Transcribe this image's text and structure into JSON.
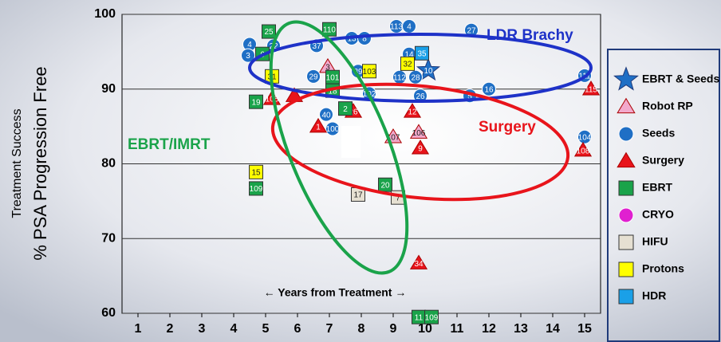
{
  "chart_data": {
    "type": "scatter",
    "y_label_top": "Treatment Success",
    "y_label": "% PSA Progression Free",
    "x_label": "← Years from Treatment →",
    "annotations": {
      "ldr": "LDR Brachy",
      "surgery": "Surgery",
      "ebrt": "EBRT/IMRT"
    },
    "xlim": [
      0.5,
      15.5
    ],
    "xticks": [
      1,
      2,
      3,
      4,
      5,
      6,
      7,
      8,
      9,
      10,
      11,
      12,
      13,
      14,
      15
    ],
    "ylim": [
      60,
      100
    ],
    "yticks": [
      60,
      70,
      80,
      90,
      100
    ],
    "grid": true,
    "series": [
      {
        "name": "EBRT & Seeds",
        "color": "#1f6fc5",
        "marker": "star",
        "x": [
          10.1
        ],
        "values": [
          92.5
        ],
        "labels": [
          "10"
        ]
      },
      {
        "name": "Robot RP",
        "color": "#f2a9cc",
        "marker": "triangle",
        "x": [
          6.95,
          9.0,
          9.8
        ],
        "values": [
          93,
          83.6,
          84.2
        ],
        "labels": [
          "3",
          "107",
          "106"
        ]
      },
      {
        "name": "Seeds",
        "color": "#1f6fc5",
        "marker": "circle",
        "x": [
          4.5,
          4.45,
          5.25,
          6.6,
          7.7,
          8.1,
          9.1,
          9.5,
          11.45,
          9.5,
          6.5,
          7.9,
          8.25,
          9.2,
          9.7,
          9.85,
          11.4,
          12,
          6.9,
          7.1,
          15,
          15
        ],
        "values": [
          96,
          94.5,
          95.8,
          95.8,
          96.8,
          96.8,
          98.4,
          98.4,
          97.9,
          94.7,
          91.7,
          92.4,
          89.4,
          91.6,
          91.6,
          89.1,
          89.1,
          90,
          86.6,
          84.7,
          91.8,
          83.6
        ],
        "labels": [
          "4",
          "3",
          "22",
          "37",
          "13",
          "8",
          "113",
          "4",
          "27",
          "14",
          "29",
          "39",
          "102",
          "112",
          "28",
          "26",
          "5",
          "16",
          "40",
          "100",
          "111",
          "104"
        ]
      },
      {
        "name": "Surgery",
        "color": "#e8141b",
        "marker": "triangle",
        "x": [
          5.2,
          5.9,
          6.65,
          7.75,
          9.6,
          9.85,
          9.8,
          15.2,
          14.95
        ],
        "values": [
          88.7,
          89.1,
          85,
          87,
          87,
          82.1,
          66.7,
          90,
          81.8
        ],
        "labels": [
          "105",
          null,
          "1",
          "26",
          "12",
          "9",
          "34",
          "115",
          "108"
        ]
      },
      {
        "name": "EBRT",
        "color": "#1aa34a",
        "marker": "square",
        "x": [
          5.1,
          4.9,
          7,
          7.1,
          7.1,
          4.7,
          7.5,
          4.7,
          8.75,
          9.8,
          10.2
        ],
        "values": [
          97.7,
          94.7,
          98,
          91.6,
          89.8,
          88.3,
          87.4,
          76.7,
          77.2,
          59.5,
          59.5
        ],
        "labels": [
          "25",
          "6",
          "110",
          "101",
          "18",
          "19",
          "2",
          "109",
          "20",
          "11",
          "109"
        ]
      },
      {
        "name": "CRYO",
        "color": "#e020d0",
        "marker": "circle",
        "x": [],
        "values": [],
        "labels": []
      },
      {
        "name": "HIFU",
        "color": "#e6e0d2",
        "marker": "square",
        "x": [
          7.9,
          9.15
        ],
        "values": [
          75.9,
          75.5
        ],
        "labels": [
          "17",
          "7"
        ]
      },
      {
        "name": "Protons",
        "color": "#ffff00",
        "marker": "square",
        "x": [
          5.2,
          8.25,
          9.45,
          4.7
        ],
        "values": [
          91.7,
          92.4,
          93.4,
          78.9
        ],
        "labels": [
          "31",
          "103",
          "32",
          "15"
        ]
      },
      {
        "name": "HDR",
        "color": "#1aa0e8",
        "marker": "square",
        "x": [
          9.9
        ],
        "values": [
          94.8
        ],
        "labels": [
          "35"
        ]
      }
    ]
  }
}
